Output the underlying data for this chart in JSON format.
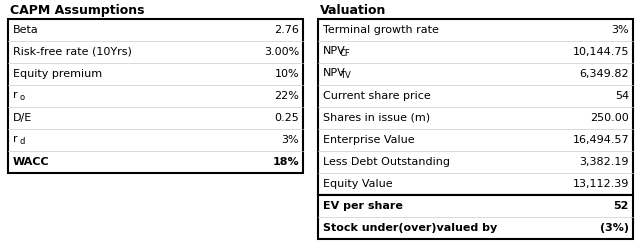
{
  "capm_title": "CAPM Assumptions",
  "capm_rows": [
    [
      "Beta",
      "2.76",
      false
    ],
    [
      "Risk-free rate (10Yrs)",
      "3.00%",
      false
    ],
    [
      "Equity premium",
      "10%",
      false
    ],
    [
      "ro",
      "22%",
      false
    ],
    [
      "D/E",
      "0.25",
      false
    ],
    [
      "rd",
      "3%",
      false
    ],
    [
      "WACC",
      "18%",
      true
    ]
  ],
  "val_title": "Valuation",
  "val_rows": [
    [
      "Terminal growth rate",
      "3%",
      false
    ],
    [
      "NPV_CF",
      "10,144.75",
      false
    ],
    [
      "NPV_TV",
      "6,349.82",
      false
    ],
    [
      "Current share price",
      "54",
      false
    ],
    [
      "Shares in issue (m)",
      "250.00",
      false
    ],
    [
      "Enterprise Value",
      "16,494.57",
      false
    ],
    [
      "Less Debt Outstanding",
      "3,382.19",
      false
    ],
    [
      "Equity Value",
      "13,112.39",
      false
    ]
  ],
  "val_summary_rows": [
    [
      "EV per share",
      "52",
      true
    ],
    [
      "Stock under(over)valued by",
      "(3%)",
      true
    ]
  ],
  "bg_color": "#ffffff",
  "border_color": "#000000",
  "text_color": "#000000",
  "font_size": 8,
  "title_font_size": 9
}
